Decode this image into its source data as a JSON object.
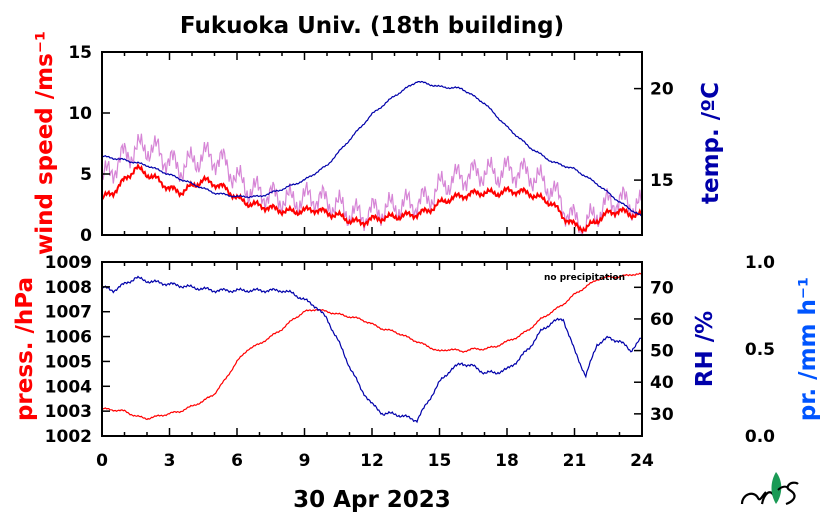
{
  "title": "Fukuoka Univ. (18th building)",
  "date_label": "30 Apr 2023",
  "note": "no precipitation",
  "logo": {
    "name": "mes-logo"
  },
  "colors": {
    "wind": "#ff0000",
    "gust": "#cc66cc",
    "temp": "#0000aa",
    "press": "#ff0000",
    "rh": "#0000aa",
    "precip": "#0055ff",
    "axes": "#000000"
  },
  "chart_data": [
    {
      "type": "line",
      "panel": "top",
      "xlabel": "",
      "xlim": [
        0,
        24
      ],
      "x_ticks": [
        "0",
        "3",
        "6",
        "9",
        "12",
        "15",
        "18",
        "21",
        "24"
      ],
      "left_axis": {
        "label": "wind speed /ms⁻¹",
        "ylim": [
          0,
          15
        ],
        "ticks": [
          "0",
          "5",
          "10",
          "15"
        ]
      },
      "right_axis": {
        "label": "temp. /ºC",
        "ylim": [
          12,
          22
        ],
        "ticks": [
          "15",
          "20"
        ]
      },
      "series": [
        {
          "axis": "left",
          "color": "wind",
          "x": [
            0,
            0.5,
            1,
            1.5,
            2,
            2.5,
            3,
            3.5,
            4,
            4.5,
            5,
            5.5,
            6,
            6.5,
            7,
            7.5,
            8,
            8.5,
            9,
            9.5,
            10,
            10.5,
            11,
            11.5,
            12,
            12.5,
            13,
            13.5,
            14,
            14.5,
            15,
            15.5,
            16,
            16.5,
            17,
            17.5,
            18,
            18.5,
            19,
            19.5,
            20,
            20.5,
            21,
            21.5,
            22,
            22.5,
            23,
            23.5,
            24
          ],
          "values": [
            3.0,
            3.5,
            4.5,
            5.5,
            5.0,
            4.5,
            3.8,
            3.5,
            4.0,
            4.5,
            4.2,
            3.8,
            3.0,
            2.6,
            2.4,
            2.2,
            2.0,
            1.9,
            2.0,
            2.1,
            1.8,
            1.6,
            1.2,
            1.0,
            1.3,
            1.4,
            1.5,
            1.6,
            1.7,
            2.0,
            2.6,
            3.0,
            3.2,
            3.4,
            3.5,
            3.4,
            3.6,
            3.6,
            3.4,
            3.0,
            2.6,
            1.5,
            0.8,
            0.5,
            1.2,
            1.8,
            2.0,
            1.7,
            1.6
          ]
        },
        {
          "axis": "left",
          "color": "gust",
          "x": [
            0,
            0.5,
            1,
            1.5,
            2,
            2.5,
            3,
            3.5,
            4,
            4.5,
            5,
            5.5,
            6,
            6.5,
            7,
            7.5,
            8,
            8.5,
            9,
            9.5,
            10,
            10.5,
            11,
            11.5,
            12,
            12.5,
            13,
            13.5,
            14,
            14.5,
            15,
            15.5,
            16,
            16.5,
            17,
            17.5,
            18,
            18.5,
            19,
            19.5,
            20,
            20.5,
            21,
            21.5,
            22,
            22.5,
            23,
            23.5,
            24
          ],
          "values": [
            4.5,
            5.5,
            6.5,
            7.0,
            7.2,
            6.8,
            6.0,
            5.5,
            6.0,
            6.5,
            6.3,
            5.8,
            4.6,
            3.8,
            3.5,
            3.2,
            3.0,
            2.8,
            3.0,
            3.1,
            2.7,
            2.4,
            1.8,
            1.6,
            1.9,
            2.1,
            2.3,
            2.5,
            2.6,
            3.0,
            3.9,
            4.5,
            4.8,
            5.0,
            5.2,
            5.0,
            5.3,
            5.2,
            5.0,
            4.4,
            3.8,
            2.3,
            1.2,
            0.8,
            1.8,
            2.6,
            2.9,
            2.5,
            2.3
          ]
        },
        {
          "axis": "right",
          "color": "temp",
          "x": [
            0,
            1,
            2,
            3,
            4,
            5,
            6,
            7,
            8,
            9,
            10,
            11,
            12,
            13,
            14,
            15,
            16,
            17,
            18,
            19,
            20,
            21,
            22,
            23,
            24
          ],
          "values": [
            16.3,
            16.1,
            15.8,
            15.3,
            14.8,
            14.3,
            14.1,
            14.1,
            14.5,
            15.0,
            15.8,
            17.2,
            18.6,
            19.6,
            20.4,
            20.1,
            20.0,
            19.2,
            17.9,
            16.8,
            16.0,
            15.6,
            14.8,
            13.8,
            13.0
          ]
        }
      ]
    },
    {
      "type": "line",
      "panel": "bottom",
      "xlabel": "30 Apr 2023",
      "xlim": [
        0,
        24
      ],
      "x_ticks": [
        "0",
        "3",
        "6",
        "9",
        "12",
        "15",
        "18",
        "21",
        "24"
      ],
      "left_axis": {
        "label": "press. /hPa",
        "ylim": [
          1002,
          1009
        ],
        "ticks": [
          "1002",
          "1003",
          "1004",
          "1005",
          "1006",
          "1007",
          "1008",
          "1009"
        ]
      },
      "right_axis": {
        "label": "RH /%",
        "ylim": [
          23,
          78
        ],
        "ticks": [
          "30",
          "40",
          "50",
          "60",
          "70"
        ]
      },
      "precip_axis": {
        "label": "pr. /mm h⁻¹",
        "ylim": [
          0,
          1
        ],
        "ticks": [
          "0.0",
          "0.5",
          "1.0"
        ]
      },
      "series": [
        {
          "axis": "left",
          "color": "press",
          "x": [
            0,
            1,
            1.5,
            2,
            2.5,
            3,
            3.5,
            4,
            4.5,
            5,
            5.5,
            6,
            6.5,
            7,
            7.5,
            8,
            8.5,
            9,
            9.5,
            10,
            10.5,
            11,
            11.5,
            12,
            12.5,
            13,
            13.5,
            14,
            14.5,
            15,
            15.5,
            16,
            16.5,
            17,
            17.5,
            18,
            18.5,
            19,
            19.5,
            20,
            20.5,
            21,
            21.5,
            22,
            22.5,
            23,
            23.5,
            24
          ],
          "values": [
            1003.1,
            1003.0,
            1002.8,
            1002.7,
            1002.8,
            1002.9,
            1003.0,
            1003.2,
            1003.4,
            1003.7,
            1004.3,
            1005.0,
            1005.5,
            1005.7,
            1006.0,
            1006.3,
            1006.7,
            1007.0,
            1007.1,
            1007.0,
            1006.9,
            1006.8,
            1006.7,
            1006.5,
            1006.3,
            1006.2,
            1006.0,
            1005.8,
            1005.6,
            1005.4,
            1005.5,
            1005.4,
            1005.5,
            1005.5,
            1005.6,
            1005.8,
            1006.0,
            1006.3,
            1006.7,
            1007.0,
            1007.3,
            1007.7,
            1008.0,
            1008.3,
            1008.4,
            1008.4,
            1008.5,
            1008.5
          ]
        },
        {
          "axis": "right",
          "color": "rh",
          "x": [
            0,
            0.5,
            1,
            1.5,
            2,
            3,
            4,
            5,
            6,
            7,
            8,
            8.5,
            9,
            9.5,
            10,
            10.5,
            11,
            11.5,
            12,
            12.5,
            13,
            13.5,
            14,
            14.5,
            15,
            15.5,
            16,
            16.5,
            17,
            17.5,
            18,
            18.5,
            19,
            19.5,
            20,
            20.5,
            21,
            21.5,
            22,
            22.5,
            23,
            23.5,
            24
          ],
          "values": [
            70,
            69,
            71,
            73,
            72,
            71,
            70,
            69,
            69,
            69,
            69,
            68,
            66,
            64,
            60,
            53,
            45,
            38,
            33,
            30,
            30,
            29,
            28,
            34,
            40,
            44,
            46,
            45,
            43,
            43,
            44,
            47,
            51,
            56,
            59,
            60,
            50,
            42,
            52,
            54,
            53,
            50,
            54
          ]
        }
      ]
    }
  ]
}
